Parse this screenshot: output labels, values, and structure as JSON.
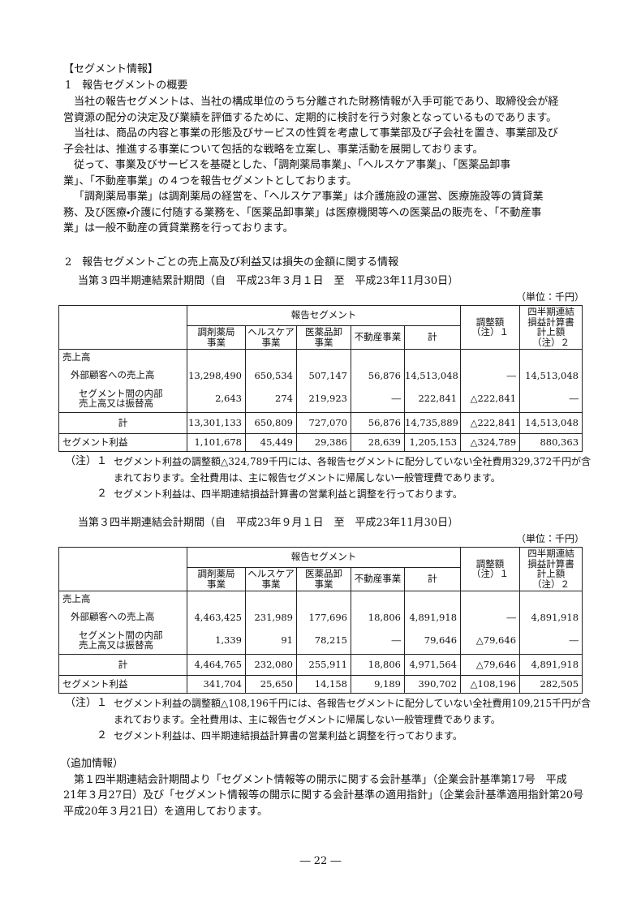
{
  "heading": "【セグメント情報】",
  "overview": {
    "title": "1　報告セグメントの概要",
    "paragraphs": [
      [
        "当社の報告セグメントは、当社の構成単位のうち分離された財務情報が入手可能であり、取締役会が経",
        "営資源の配分の決定及び業績を評価するために、定期的に検討を行う対象となっているものであります。"
      ],
      [
        "当社は、商品の内容と事業の形態及びサービスの性質を考慮して事業部及び子会社を置き、事業部及び",
        "子会社は、推進する事業について包括的な戦略を立案し、事業活動を展開しております。"
      ],
      [
        "従って、事業及びサービスを基礎とした、「調剤薬局事業」、「ヘルスケア事業」、「医薬品卸事",
        "業」、「不動産事業」の４つを報告セグメントとしております。"
      ],
      [
        "「調剤薬局事業」は調剤薬局の経営を、「ヘルスケア事業」は介護施設の運営、医療施設等の賃貸業",
        "務、及び医療・介護に付随する業務を、「医薬品卸事業」は医療機関等への医薬品の販売を、「不動産事",
        "業」は一般不動産の賃貸業務を行っております。"
      ]
    ]
  },
  "amounts": {
    "title": "2　報告セグメントごとの売上高及び利益又は損失の金額に関する情報",
    "tables": [
      {
        "period": "当第３四半期連結累計期間（自　平成23年３月１日　至　平成23年11月30日）",
        "unit": "（単位：千円）",
        "group_header": "報告セグメント",
        "columns": [
          "調剤薬局\n事業",
          "ヘルスケア\n事業",
          "医薬品卸\n事業",
          "不動産事業",
          "計",
          "調整額\n（注）１",
          "四半期連結\n損益計算書\n計上額\n（注）２"
        ],
        "rows": [
          {
            "label": "売上高",
            "cells": []
          },
          {
            "label": "外部顧客への売上高",
            "cells": [
              "13,298,490",
              "650,534",
              "507,147",
              "56,876",
              "14,513,048",
              "―",
              "14,513,048"
            ]
          },
          {
            "label": "セグメント間の内部\n売上高又は振替高",
            "cells": [
              "2,643",
              "274",
              "219,923",
              "―",
              "222,841",
              "△222,841",
              "―"
            ]
          },
          {
            "label": "計",
            "cells": [
              "13,301,133",
              "650,809",
              "727,070",
              "56,876",
              "14,735,889",
              "△222,841",
              "14,513,048"
            ]
          },
          {
            "label": "セグメント利益",
            "cells": [
              "1,101,678",
              "45,449",
              "29,386",
              "28,639",
              "1,205,153",
              "△324,789",
              "880,363"
            ]
          }
        ],
        "notes": [
          {
            "label": "（注）１",
            "lines": [
              "セグメント利益の調整額△324,789千円には、各報告セグメントに配分していない全社費用329,372千円が含",
              "まれております。全社費用は、主に報告セグメントに帰属しない一般管理費であります。"
            ]
          },
          {
            "label": "２",
            "lines": [
              "セグメント利益は、四半期連結損益計算書の営業利益と調整を行っております。"
            ]
          }
        ]
      },
      {
        "period": "当第３四半期連結会計期間（自　平成23年９月１日　至　平成23年11月30日）",
        "unit": "（単位：千円）",
        "group_header": "報告セグメント",
        "columns": [
          "調剤薬局\n事業",
          "ヘルスケア\n事業",
          "医薬品卸\n事業",
          "不動産事業",
          "計",
          "調整額\n（注）１",
          "四半期連結\n損益計算書\n計上額\n（注）２"
        ],
        "rows": [
          {
            "label": "売上高",
            "cells": []
          },
          {
            "label": "外部顧客への売上高",
            "cells": [
              "4,463,425",
              "231,989",
              "177,696",
              "18,806",
              "4,891,918",
              "―",
              "4,891,918"
            ]
          },
          {
            "label": "セグメント間の内部\n売上高又は振替高",
            "cells": [
              "1,339",
              "91",
              "78,215",
              "―",
              "79,646",
              "△79,646",
              "―"
            ]
          },
          {
            "label": "計",
            "cells": [
              "4,464,765",
              "232,080",
              "255,911",
              "18,806",
              "4,971,564",
              "△79,646",
              "4,891,918"
            ]
          },
          {
            "label": "セグメント利益",
            "cells": [
              "341,704",
              "25,650",
              "14,158",
              "9,189",
              "390,702",
              "△108,196",
              "282,505"
            ]
          }
        ],
        "notes": [
          {
            "label": "（注）１",
            "lines": [
              "セグメント利益の調整額△108,196千円には、各報告セグメントに配分していない全社費用109,215千円が含",
              "まれております。全社費用は、主に報告セグメントに帰属しない一般管理費であります。"
            ]
          },
          {
            "label": "２",
            "lines": [
              "セグメント利益は、四半期連結損益計算書の営業利益と調整を行っております。"
            ]
          }
        ]
      }
    ]
  },
  "additional": {
    "title": "（追加情報）",
    "lines": [
      "第１四半期連結会計期間より「セグメント情報等の開示に関する会計基準」（企業会計基準第17号　平成",
      "21年３月27日）及び「セグメント情報等の開示に関する会計基準の適用指針」（企業会計基準適用指針第20号",
      "平成20年３月21日）を適用しております。"
    ]
  },
  "page_number": "― 22 ―"
}
